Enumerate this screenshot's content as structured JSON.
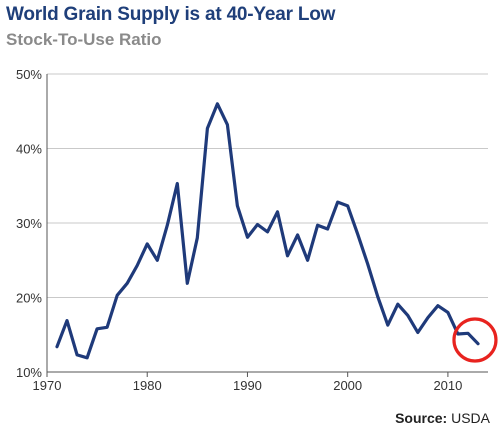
{
  "chart_data": {
    "type": "line",
    "title": "World Grain Supply is at 40-Year Low",
    "subtitle": "Stock-To-Use Ratio",
    "xlim": [
      1970,
      2014
    ],
    "ylim": [
      10,
      50
    ],
    "x_ticks": [
      1970,
      1980,
      1990,
      2000,
      2010
    ],
    "y_ticks": [
      10,
      20,
      30,
      40,
      50
    ],
    "y_tick_labels": [
      "10%",
      "20%",
      "30%",
      "40%",
      "50%"
    ],
    "grid": "horizontal",
    "line_color": "#1f3a7a",
    "highlight_color": "#e8231f",
    "series": [
      {
        "x": [
          1971,
          1972,
          1973,
          1974,
          1975,
          1976,
          1977,
          1978,
          1979,
          1980,
          1981,
          1982,
          1983,
          1984,
          1985,
          1986,
          1987,
          1988,
          1989,
          1990,
          1991,
          1992,
          1993,
          1994,
          1995,
          1996,
          1997,
          1998,
          1999,
          2000,
          2001,
          2002,
          2003,
          2004,
          2005,
          2006,
          2007,
          2008,
          2009,
          2010,
          2011,
          2012,
          2013
        ],
        "values": [
          13.4,
          16.9,
          12.3,
          11.9,
          15.8,
          16.0,
          20.3,
          21.9,
          24.3,
          27.2,
          25.0,
          29.7,
          35.3,
          21.9,
          28.0,
          42.7,
          46.0,
          43.2,
          32.3,
          28.1,
          29.8,
          28.8,
          31.5,
          25.6,
          28.4,
          25.0,
          29.7,
          29.2,
          32.8,
          32.3,
          28.5,
          24.5,
          20.1,
          16.3,
          19.1,
          17.6,
          15.3,
          17.3,
          18.9,
          18.0,
          15.1,
          15.2,
          13.8
        ]
      }
    ],
    "annotations": [
      {
        "type": "circle",
        "x": 2012.7,
        "y": 14.3,
        "meaning": "highlight latest value"
      }
    ]
  },
  "source": {
    "label": "Source:",
    "value": "USDA"
  }
}
